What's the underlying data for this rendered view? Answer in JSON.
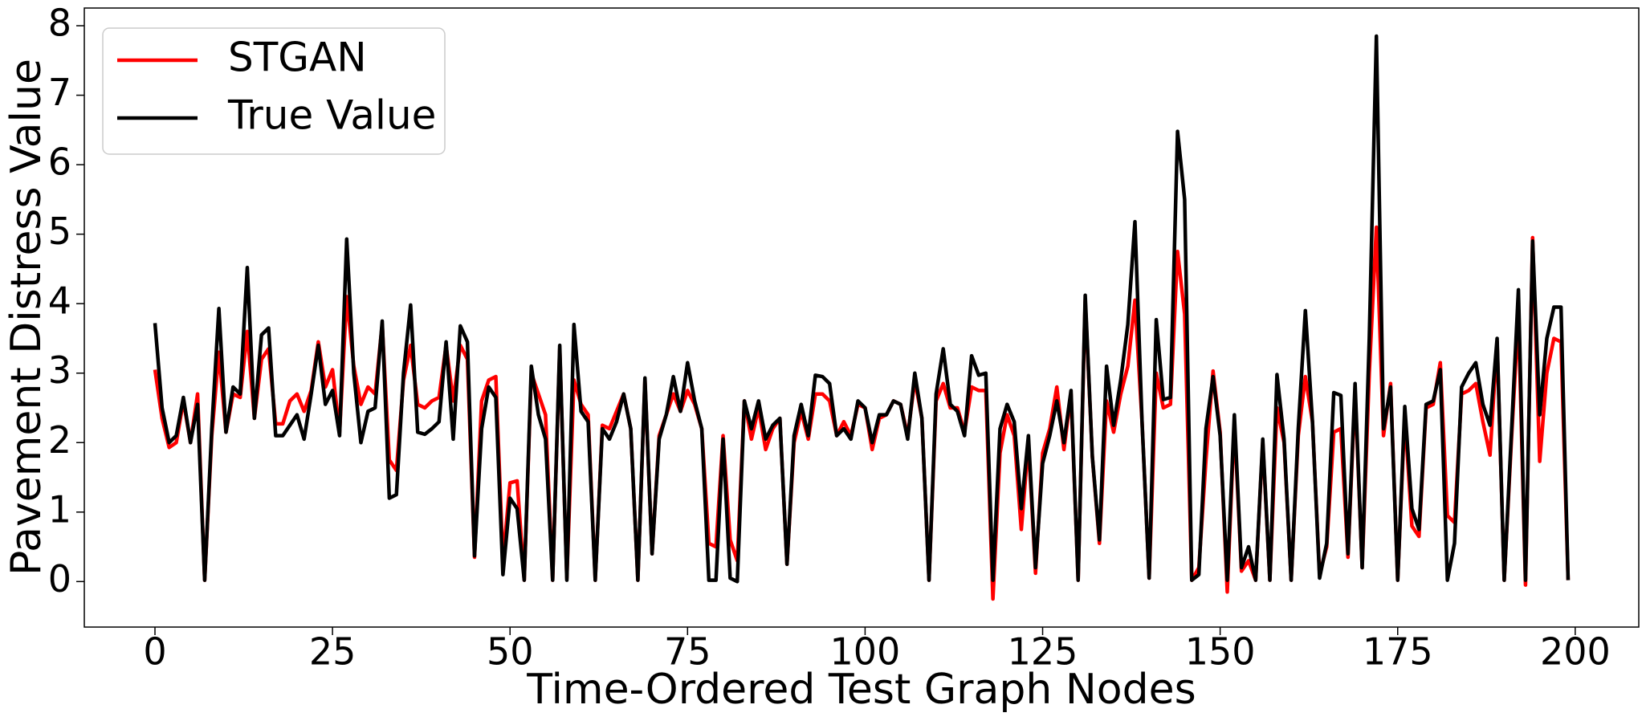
{
  "chart_data": {
    "type": "line",
    "x_label": "Time-Ordered Test Graph Nodes",
    "y_label": "Pavement Distress Value",
    "legend": "upper left",
    "xlim": [
      -9.95,
      208.95
    ],
    "xticks": [
      0,
      25,
      50,
      75,
      100,
      125,
      150,
      175,
      200
    ],
    "ylim": [
      -0.655,
      8.255
    ],
    "yticks": [
      0,
      1,
      2,
      3,
      4,
      5,
      6,
      7,
      8
    ],
    "x": [
      0,
      1,
      2,
      3,
      4,
      5,
      6,
      7,
      8,
      9,
      10,
      11,
      12,
      13,
      14,
      15,
      16,
      17,
      18,
      19,
      20,
      21,
      22,
      23,
      24,
      25,
      26,
      27,
      28,
      29,
      30,
      31,
      32,
      33,
      34,
      35,
      36,
      37,
      38,
      39,
      40,
      41,
      42,
      43,
      44,
      45,
      46,
      47,
      48,
      49,
      50,
      51,
      52,
      53,
      54,
      55,
      56,
      57,
      58,
      59,
      60,
      61,
      62,
      63,
      64,
      65,
      66,
      67,
      68,
      69,
      70,
      71,
      72,
      73,
      74,
      75,
      76,
      77,
      78,
      79,
      80,
      81,
      82,
      83,
      84,
      85,
      86,
      87,
      88,
      89,
      90,
      91,
      92,
      93,
      94,
      95,
      96,
      97,
      98,
      99,
      100,
      101,
      102,
      103,
      104,
      105,
      106,
      107,
      108,
      109,
      110,
      111,
      112,
      113,
      114,
      115,
      116,
      117,
      118,
      119,
      120,
      121,
      122,
      123,
      124,
      125,
      126,
      127,
      128,
      129,
      130,
      131,
      132,
      133,
      134,
      135,
      136,
      137,
      138,
      139,
      140,
      141,
      142,
      143,
      144,
      145,
      146,
      147,
      148,
      149,
      150,
      151,
      152,
      153,
      154,
      155,
      156,
      157,
      158,
      159,
      160,
      161,
      162,
      163,
      164,
      165,
      166,
      167,
      168,
      169,
      170,
      171,
      172,
      173,
      174,
      175,
      176,
      177,
      178,
      179,
      180,
      181,
      182,
      183,
      184,
      185,
      186,
      187,
      188,
      189,
      190,
      191,
      192,
      193,
      194,
      195,
      196,
      197,
      198,
      199
    ],
    "series": [
      {
        "name": "STGAN",
        "color": "#ff0000",
        "values": [
          3.05,
          2.35,
          1.93,
          2.0,
          2.6,
          2.0,
          2.7,
          0.02,
          2.1,
          3.3,
          2.15,
          2.7,
          2.65,
          3.6,
          2.35,
          3.2,
          3.35,
          2.27,
          2.27,
          2.6,
          2.7,
          2.45,
          2.75,
          3.45,
          2.8,
          3.05,
          2.15,
          4.1,
          3.1,
          2.55,
          2.8,
          2.7,
          3.7,
          1.75,
          1.6,
          2.9,
          3.4,
          2.55,
          2.5,
          2.6,
          2.65,
          3.4,
          2.6,
          3.4,
          3.2,
          0.35,
          2.6,
          2.9,
          2.95,
          0.3,
          1.42,
          1.45,
          0.02,
          3.0,
          2.7,
          2.4,
          0.02,
          3.35,
          0.05,
          2.9,
          2.55,
          2.4,
          0.02,
          2.25,
          2.2,
          2.45,
          2.7,
          2.2,
          0.02,
          2.9,
          0.4,
          2.1,
          2.4,
          2.7,
          2.45,
          2.75,
          2.55,
          2.2,
          0.55,
          0.5,
          2.1,
          0.6,
          0.3,
          2.6,
          2.05,
          2.5,
          1.9,
          2.2,
          2.35,
          0.25,
          2.0,
          2.45,
          2.05,
          2.7,
          2.7,
          2.6,
          2.1,
          2.3,
          2.1,
          2.55,
          2.5,
          1.9,
          2.35,
          2.4,
          2.6,
          2.55,
          2.1,
          2.9,
          2.35,
          0.02,
          2.6,
          2.85,
          2.5,
          2.5,
          2.15,
          2.8,
          2.75,
          2.75,
          -0.25,
          1.85,
          2.4,
          2.1,
          0.75,
          2.0,
          0.12,
          1.85,
          2.2,
          2.8,
          1.9,
          2.7,
          0.02,
          4.05,
          1.8,
          0.55,
          2.6,
          2.15,
          2.7,
          3.1,
          4.05,
          2.3,
          0.05,
          3.0,
          2.5,
          2.55,
          4.75,
          3.85,
          0.02,
          0.2,
          1.75,
          3.03,
          2.15,
          -0.15,
          2.3,
          0.15,
          0.3,
          0.02,
          2.0,
          0.02,
          2.5,
          2.0,
          0.02,
          2.1,
          2.95,
          2.3,
          0.1,
          0.5,
          2.15,
          2.2,
          0.35,
          2.75,
          0.2,
          3.0,
          5.1,
          2.1,
          2.85,
          0.02,
          2.4,
          0.8,
          0.65,
          2.5,
          2.55,
          3.15,
          0.95,
          0.85,
          2.7,
          2.75,
          2.85,
          2.3,
          1.82,
          3.45,
          0.02,
          2.0,
          3.85,
          -0.05,
          4.95,
          1.73,
          3.0,
          3.5,
          3.45,
          0.02
        ]
      },
      {
        "name": "True Value",
        "color": "#000000",
        "values": [
          3.72,
          2.5,
          2.0,
          2.1,
          2.65,
          2.0,
          2.55,
          0.02,
          2.2,
          3.93,
          2.15,
          2.8,
          2.7,
          4.52,
          2.35,
          3.55,
          3.65,
          2.1,
          2.1,
          2.25,
          2.4,
          2.05,
          2.7,
          3.4,
          2.55,
          2.75,
          2.1,
          4.93,
          3.0,
          2.0,
          2.45,
          2.5,
          3.75,
          1.2,
          1.25,
          3.0,
          3.98,
          2.15,
          2.12,
          2.2,
          2.3,
          3.45,
          2.05,
          3.68,
          3.45,
          0.37,
          2.2,
          2.8,
          2.65,
          0.1,
          1.2,
          1.05,
          0.02,
          3.1,
          2.4,
          2.05,
          0.02,
          3.4,
          0.02,
          3.7,
          2.45,
          2.3,
          0.02,
          2.2,
          2.05,
          2.3,
          2.7,
          2.2,
          0.02,
          2.93,
          0.4,
          2.05,
          2.4,
          2.95,
          2.45,
          3.15,
          2.6,
          2.2,
          0.02,
          0.02,
          2.05,
          0.05,
          0.0,
          2.6,
          2.2,
          2.6,
          2.05,
          2.25,
          2.35,
          0.25,
          2.1,
          2.55,
          2.1,
          2.97,
          2.95,
          2.85,
          2.1,
          2.2,
          2.05,
          2.6,
          2.5,
          2.0,
          2.4,
          2.4,
          2.6,
          2.55,
          2.05,
          3.0,
          2.35,
          0.02,
          2.7,
          3.35,
          2.55,
          2.45,
          2.1,
          3.25,
          2.97,
          3.0,
          0.02,
          2.2,
          2.55,
          2.3,
          1.05,
          2.1,
          0.2,
          1.7,
          2.1,
          2.6,
          2.0,
          2.75,
          0.02,
          4.12,
          1.8,
          0.6,
          3.1,
          2.25,
          2.9,
          3.7,
          5.18,
          2.3,
          0.05,
          3.77,
          2.62,
          2.65,
          6.48,
          5.5,
          0.02,
          0.1,
          2.2,
          2.95,
          2.1,
          0.02,
          2.4,
          0.2,
          0.5,
          0.02,
          2.05,
          0.02,
          2.98,
          2.05,
          0.02,
          2.2,
          3.9,
          2.3,
          0.05,
          0.55,
          2.72,
          2.68,
          0.4,
          2.85,
          0.2,
          3.5,
          7.85,
          2.2,
          2.8,
          0.02,
          2.52,
          1.05,
          0.75,
          2.55,
          2.6,
          3.05,
          0.02,
          0.55,
          2.8,
          3.0,
          3.15,
          2.55,
          2.25,
          3.5,
          0.02,
          2.1,
          4.2,
          0.02,
          4.9,
          2.4,
          3.5,
          3.95,
          3.95,
          0.02
        ]
      }
    ]
  }
}
